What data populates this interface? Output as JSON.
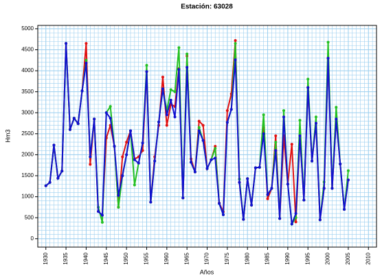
{
  "chart_data": {
    "type": "line",
    "title": "Estación:  63028",
    "x_label": "Años",
    "y_label": "Hm3",
    "x": [
      1930,
      1931,
      1932,
      1933,
      1934,
      1935,
      1936,
      1937,
      1938,
      1939,
      1940,
      1941,
      1942,
      1943,
      1944,
      1945,
      1946,
      1947,
      1948,
      1949,
      1950,
      1951,
      1952,
      1953,
      1954,
      1955,
      1956,
      1957,
      1958,
      1959,
      1960,
      1961,
      1962,
      1963,
      1964,
      1965,
      1966,
      1967,
      1968,
      1969,
      1970,
      1971,
      1972,
      1973,
      1974,
      1975,
      1976,
      1977,
      1978,
      1979,
      1980,
      1981,
      1982,
      1983,
      1984,
      1985,
      1986,
      1987,
      1988,
      1989,
      1990,
      1991,
      1992,
      1993,
      1994,
      1995,
      1996,
      1997,
      1998,
      1999,
      2000,
      2001,
      2002,
      2003,
      2004,
      2005
    ],
    "series": [
      {
        "color": "#e01010",
        "values": [
          1260,
          1340,
          2230,
          1440,
          1610,
          4650,
          2600,
          2870,
          2740,
          3520,
          4650,
          1770,
          2850,
          650,
          560,
          2400,
          2700,
          2200,
          750,
          1950,
          2300,
          2570,
          1900,
          1950,
          2100,
          3980,
          870,
          1950,
          2700,
          3850,
          2700,
          3200,
          3150,
          4050,
          970,
          4350,
          1900,
          1590,
          2800,
          2700,
          1670,
          1880,
          2200,
          850,
          640,
          3050,
          3450,
          4720,
          1340,
          460,
          1430,
          800,
          1690,
          1700,
          2650,
          950,
          1200,
          2450,
          480,
          2450,
          1300,
          2250,
          400,
          2450,
          920,
          3600,
          1850,
          2750,
          450,
          1200,
          4300,
          1200,
          2850,
          1780,
          700,
          1400
        ]
      },
      {
        "color": "#22c022",
        "values": [
          1260,
          1340,
          2230,
          1440,
          1610,
          4650,
          2600,
          2870,
          2740,
          3520,
          4250,
          1950,
          2850,
          750,
          390,
          3000,
          3150,
          2200,
          750,
          1500,
          2000,
          2570,
          1280,
          1800,
          2280,
          4130,
          870,
          1850,
          2780,
          3570,
          3050,
          3550,
          3500,
          4550,
          970,
          4400,
          1820,
          1590,
          2650,
          2340,
          1670,
          1880,
          2150,
          840,
          570,
          2770,
          3080,
          4650,
          1420,
          460,
          1430,
          800,
          1690,
          1700,
          2950,
          1050,
          1200,
          2300,
          480,
          3050,
          1300,
          350,
          500,
          2820,
          920,
          3800,
          1850,
          2900,
          450,
          1350,
          4680,
          1200,
          3130,
          1780,
          700,
          1620
        ]
      },
      {
        "color": "#1010d0",
        "values": [
          1260,
          1340,
          2230,
          1440,
          1610,
          4650,
          2600,
          2870,
          2740,
          3520,
          4180,
          1950,
          2850,
          650,
          560,
          3000,
          2870,
          2200,
          1030,
          1500,
          2000,
          2570,
          1880,
          1800,
          2280,
          3980,
          870,
          1850,
          2780,
          3570,
          2950,
          3300,
          2900,
          4030,
          970,
          4080,
          1820,
          1590,
          2570,
          2340,
          1670,
          1880,
          1920,
          840,
          570,
          2770,
          3080,
          4260,
          1340,
          460,
          1430,
          800,
          1690,
          1700,
          2500,
          1050,
          1200,
          2100,
          480,
          2900,
          1300,
          350,
          600,
          2450,
          920,
          3600,
          1850,
          2750,
          450,
          1200,
          4300,
          1200,
          2850,
          1780,
          700,
          1400
        ]
      }
    ],
    "xlim": [
      1928,
      2012
    ],
    "xticks": [
      1930,
      1935,
      1940,
      1945,
      1950,
      1955,
      1960,
      1965,
      1970,
      1975,
      1980,
      1985,
      1990,
      1995,
      2000,
      2005,
      2010
    ],
    "ylim": [
      -200,
      5080
    ],
    "yticks": [
      0,
      500,
      1000,
      1500,
      2000,
      2500,
      3000,
      3500,
      4000,
      4500,
      5000
    ],
    "grid": true,
    "grid_color": "#9ccfef"
  }
}
